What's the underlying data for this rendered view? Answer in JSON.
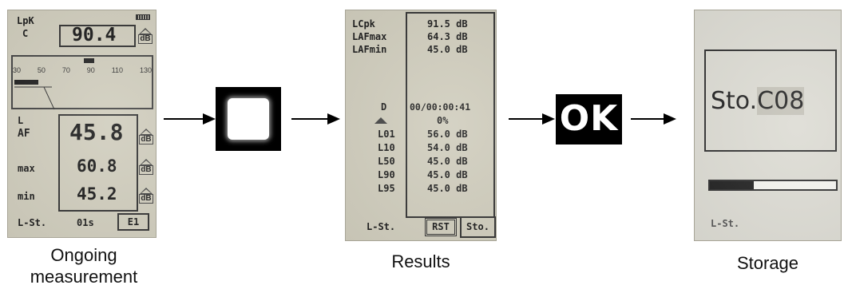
{
  "screen1": {
    "peak_label": "LpK",
    "peak_weight": "C",
    "peak_value": "90.4",
    "unit": "dB",
    "scale_ticks": [
      "30",
      "50",
      "70",
      "90",
      "110",
      "130"
    ],
    "level_label": "L",
    "af_label": "AF",
    "af_value": "45.8",
    "max_label": "max",
    "max_value": "60.8",
    "min_label": "min",
    "min_value": "45.2",
    "mode_label": "L-St.",
    "time_value": "01s",
    "range_label": "E1"
  },
  "key_stop": {
    "icon": "square-stop-icon"
  },
  "screen2": {
    "rows": [
      {
        "label": "LCpk",
        "value": "91.5 dB"
      },
      {
        "label": "LAFmax",
        "value": "64.3 dB"
      },
      {
        "label": "LAFmin",
        "value": "45.0 dB"
      }
    ],
    "duration_label": "D",
    "duration_value": "00/00:00:41",
    "overload_value": "0%",
    "percentiles": [
      {
        "label": "L01",
        "value": "56.0 dB"
      },
      {
        "label": "L10",
        "value": "54.0 dB"
      },
      {
        "label": "L50",
        "value": "45.0 dB"
      },
      {
        "label": "L90",
        "value": "45.0 dB"
      },
      {
        "label": "L95",
        "value": "45.0 dB"
      }
    ],
    "mode_label": "L-St.",
    "rst_label": "RST",
    "sto_label": "Sto."
  },
  "key_ok": {
    "label": "OK"
  },
  "screen3": {
    "store_text": "Sto.",
    "store_slot": "C08",
    "progress": 0.35,
    "mode_label": "L-St."
  },
  "captions": {
    "ongoing_line1": "Ongoing",
    "ongoing_line2": "measurement",
    "results": "Results",
    "storage": "Storage"
  }
}
